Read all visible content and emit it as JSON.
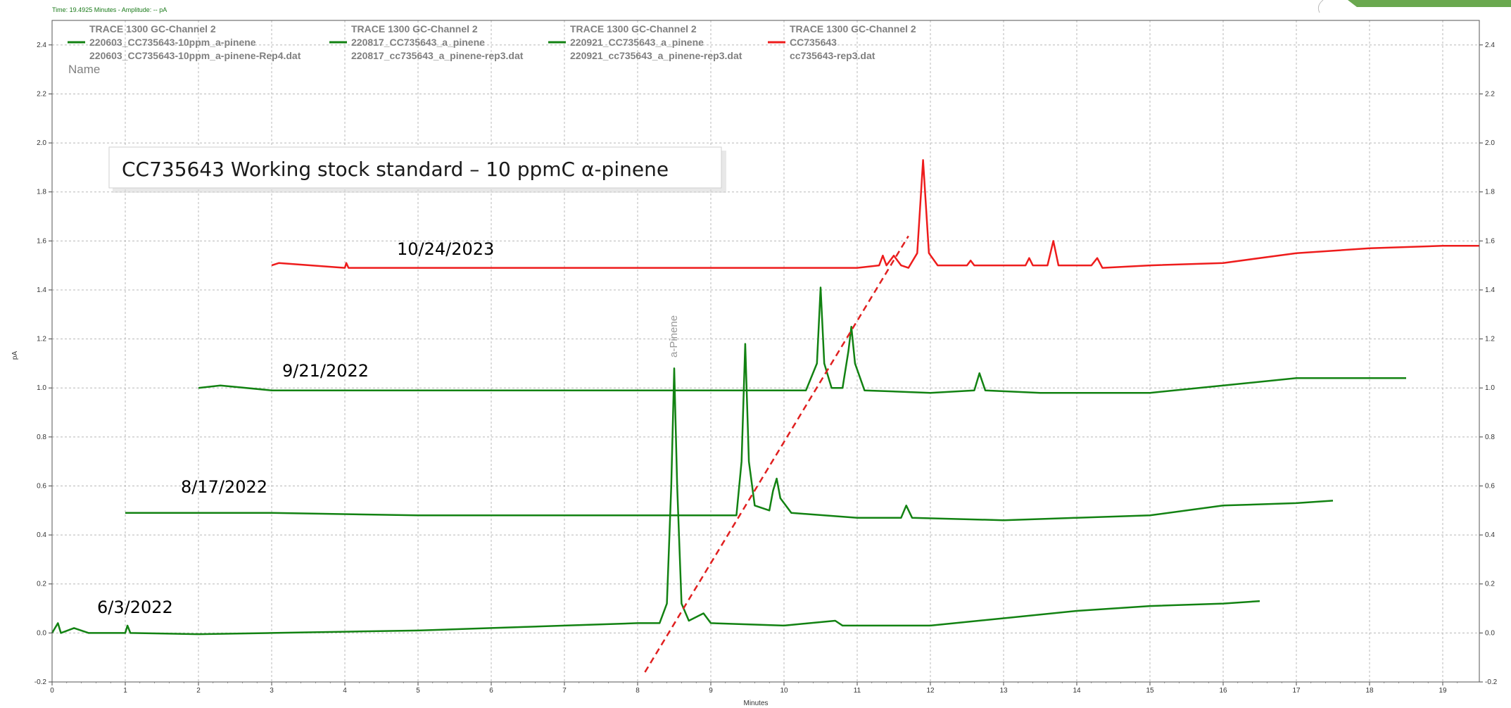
{
  "status_bar": "Time:  19.4925 Minutes - Amplitude:  -- pA",
  "legend_name_header": "Name",
  "annotation_box": "CC735643 Working stock standard – 10 ppmC α-pinene",
  "peak_label": "a-Pinene",
  "colors": {
    "green_trace": "#128212",
    "red_trace": "#ee1c1c",
    "dashed_line": "#e02020",
    "grid": "#b8b8b8",
    "accent_corner": "#6aa84f"
  },
  "chart_data": {
    "type": "line",
    "xlabel": "Minutes",
    "ylabel": "pA",
    "xlim": [
      0,
      19.5
    ],
    "ylim": [
      -0.2,
      2.5
    ],
    "x_ticks": [
      "0",
      "1",
      "2",
      "3",
      "4",
      "5",
      "6",
      "7",
      "8",
      "9",
      "10",
      "11",
      "12",
      "13",
      "14",
      "15",
      "16",
      "17",
      "18",
      "19"
    ],
    "y_ticks": [
      "-0.2",
      "0.0",
      "0.2",
      "0.4",
      "0.6",
      "0.8",
      "1.0",
      "1.2",
      "1.4",
      "1.6",
      "1.8",
      "2.0",
      "2.2",
      "2.4"
    ],
    "grid": true,
    "legend_position": "top-left",
    "series": [
      {
        "name": "220603_CC735643-10ppm_a-pinene",
        "instrument": "TRACE 1300 GC-Channel 2",
        "file": "220603_CC735643-10ppm_a-pinene-Rep4.dat",
        "date_label": "6/3/2022",
        "color": "#128212",
        "x_range": [
          0,
          16.5
        ],
        "points": [
          [
            0,
            0.0
          ],
          [
            0.08,
            0.04
          ],
          [
            0.12,
            0.0
          ],
          [
            0.3,
            0.02
          ],
          [
            0.5,
            0.0
          ],
          [
            1.0,
            0.0
          ],
          [
            1.03,
            0.03
          ],
          [
            1.07,
            0.0
          ],
          [
            2,
            -0.005
          ],
          [
            3,
            0.0
          ],
          [
            4,
            0.005
          ],
          [
            5,
            0.01
          ],
          [
            6,
            0.02
          ],
          [
            7,
            0.03
          ],
          [
            8,
            0.04
          ],
          [
            8.3,
            0.04
          ],
          [
            8.4,
            0.12
          ],
          [
            8.46,
            0.6
          ],
          [
            8.5,
            1.08
          ],
          [
            8.54,
            0.6
          ],
          [
            8.6,
            0.12
          ],
          [
            8.7,
            0.05
          ],
          [
            8.9,
            0.08
          ],
          [
            9.0,
            0.04
          ],
          [
            10,
            0.03
          ],
          [
            10.7,
            0.05
          ],
          [
            10.8,
            0.03
          ],
          [
            12,
            0.03
          ],
          [
            13,
            0.06
          ],
          [
            14,
            0.09
          ],
          [
            15,
            0.11
          ],
          [
            16,
            0.12
          ],
          [
            16.5,
            0.13
          ]
        ]
      },
      {
        "name": "220817_CC735643_a_pinene",
        "instrument": "TRACE 1300 GC-Channel 2",
        "file": "220817_cc735643_a_pinene-rep3.dat",
        "date_label": "8/17/2022",
        "color": "#128212",
        "x_range": [
          1,
          17.5
        ],
        "points": [
          [
            1,
            0.49
          ],
          [
            2,
            0.49
          ],
          [
            3,
            0.49
          ],
          [
            5,
            0.48
          ],
          [
            7,
            0.48
          ],
          [
            8,
            0.48
          ],
          [
            9,
            0.48
          ],
          [
            9.35,
            0.48
          ],
          [
            9.42,
            0.7
          ],
          [
            9.47,
            1.18
          ],
          [
            9.52,
            0.7
          ],
          [
            9.6,
            0.52
          ],
          [
            9.8,
            0.5
          ],
          [
            9.85,
            0.58
          ],
          [
            9.9,
            0.63
          ],
          [
            9.95,
            0.55
          ],
          [
            10.1,
            0.49
          ],
          [
            11,
            0.47
          ],
          [
            11.6,
            0.47
          ],
          [
            11.67,
            0.52
          ],
          [
            11.75,
            0.47
          ],
          [
            13,
            0.46
          ],
          [
            14,
            0.47
          ],
          [
            15,
            0.48
          ],
          [
            16,
            0.52
          ],
          [
            17,
            0.53
          ],
          [
            17.5,
            0.54
          ]
        ]
      },
      {
        "name": "220921_CC735643_a_pinene",
        "instrument": "TRACE 1300 GC-Channel 2",
        "file": "220921_cc735643_a_pinene-rep3.dat",
        "date_label": "9/21/2022",
        "color": "#128212",
        "x_range": [
          2,
          18.5
        ],
        "points": [
          [
            2,
            1.0
          ],
          [
            2.3,
            1.01
          ],
          [
            3,
            0.99
          ],
          [
            5,
            0.99
          ],
          [
            7,
            0.99
          ],
          [
            9,
            0.99
          ],
          [
            10.3,
            0.99
          ],
          [
            10.45,
            1.1
          ],
          [
            10.5,
            1.41
          ],
          [
            10.55,
            1.1
          ],
          [
            10.65,
            1.0
          ],
          [
            10.8,
            1.0
          ],
          [
            10.88,
            1.15
          ],
          [
            10.92,
            1.25
          ],
          [
            10.97,
            1.1
          ],
          [
            11.1,
            0.99
          ],
          [
            12,
            0.98
          ],
          [
            12.6,
            0.99
          ],
          [
            12.67,
            1.06
          ],
          [
            12.75,
            0.99
          ],
          [
            13.5,
            0.98
          ],
          [
            14,
            0.98
          ],
          [
            15,
            0.98
          ],
          [
            16,
            1.01
          ],
          [
            17,
            1.04
          ],
          [
            18,
            1.04
          ],
          [
            18.5,
            1.04
          ]
        ]
      },
      {
        "name": "CC735643",
        "instrument": "TRACE 1300 GC-Channel 2",
        "file": "cc735643-rep3.dat",
        "date_label": "10/24/2023",
        "color": "#ee1c1c",
        "x_range": [
          3,
          19.5
        ],
        "points": [
          [
            3,
            1.5
          ],
          [
            3.1,
            1.51
          ],
          [
            4,
            1.49
          ],
          [
            4.02,
            1.51
          ],
          [
            4.05,
            1.49
          ],
          [
            6,
            1.49
          ],
          [
            8,
            1.49
          ],
          [
            10,
            1.49
          ],
          [
            11,
            1.49
          ],
          [
            11.3,
            1.5
          ],
          [
            11.35,
            1.54
          ],
          [
            11.4,
            1.5
          ],
          [
            11.5,
            1.54
          ],
          [
            11.6,
            1.5
          ],
          [
            11.7,
            1.49
          ],
          [
            11.82,
            1.55
          ],
          [
            11.9,
            1.93
          ],
          [
            11.98,
            1.55
          ],
          [
            12.1,
            1.5
          ],
          [
            12.5,
            1.5
          ],
          [
            12.55,
            1.52
          ],
          [
            12.6,
            1.5
          ],
          [
            13.3,
            1.5
          ],
          [
            13.35,
            1.53
          ],
          [
            13.4,
            1.5
          ],
          [
            13.6,
            1.5
          ],
          [
            13.68,
            1.6
          ],
          [
            13.75,
            1.5
          ],
          [
            14.2,
            1.5
          ],
          [
            14.28,
            1.53
          ],
          [
            14.35,
            1.49
          ],
          [
            15,
            1.5
          ],
          [
            16,
            1.51
          ],
          [
            17,
            1.55
          ],
          [
            18,
            1.57
          ],
          [
            19,
            1.58
          ],
          [
            19.5,
            1.58
          ]
        ]
      }
    ],
    "trend_line": {
      "style": "dashed",
      "color": "#e02020",
      "from": [
        8.1,
        -0.16
      ],
      "to": [
        11.7,
        1.62
      ]
    }
  }
}
